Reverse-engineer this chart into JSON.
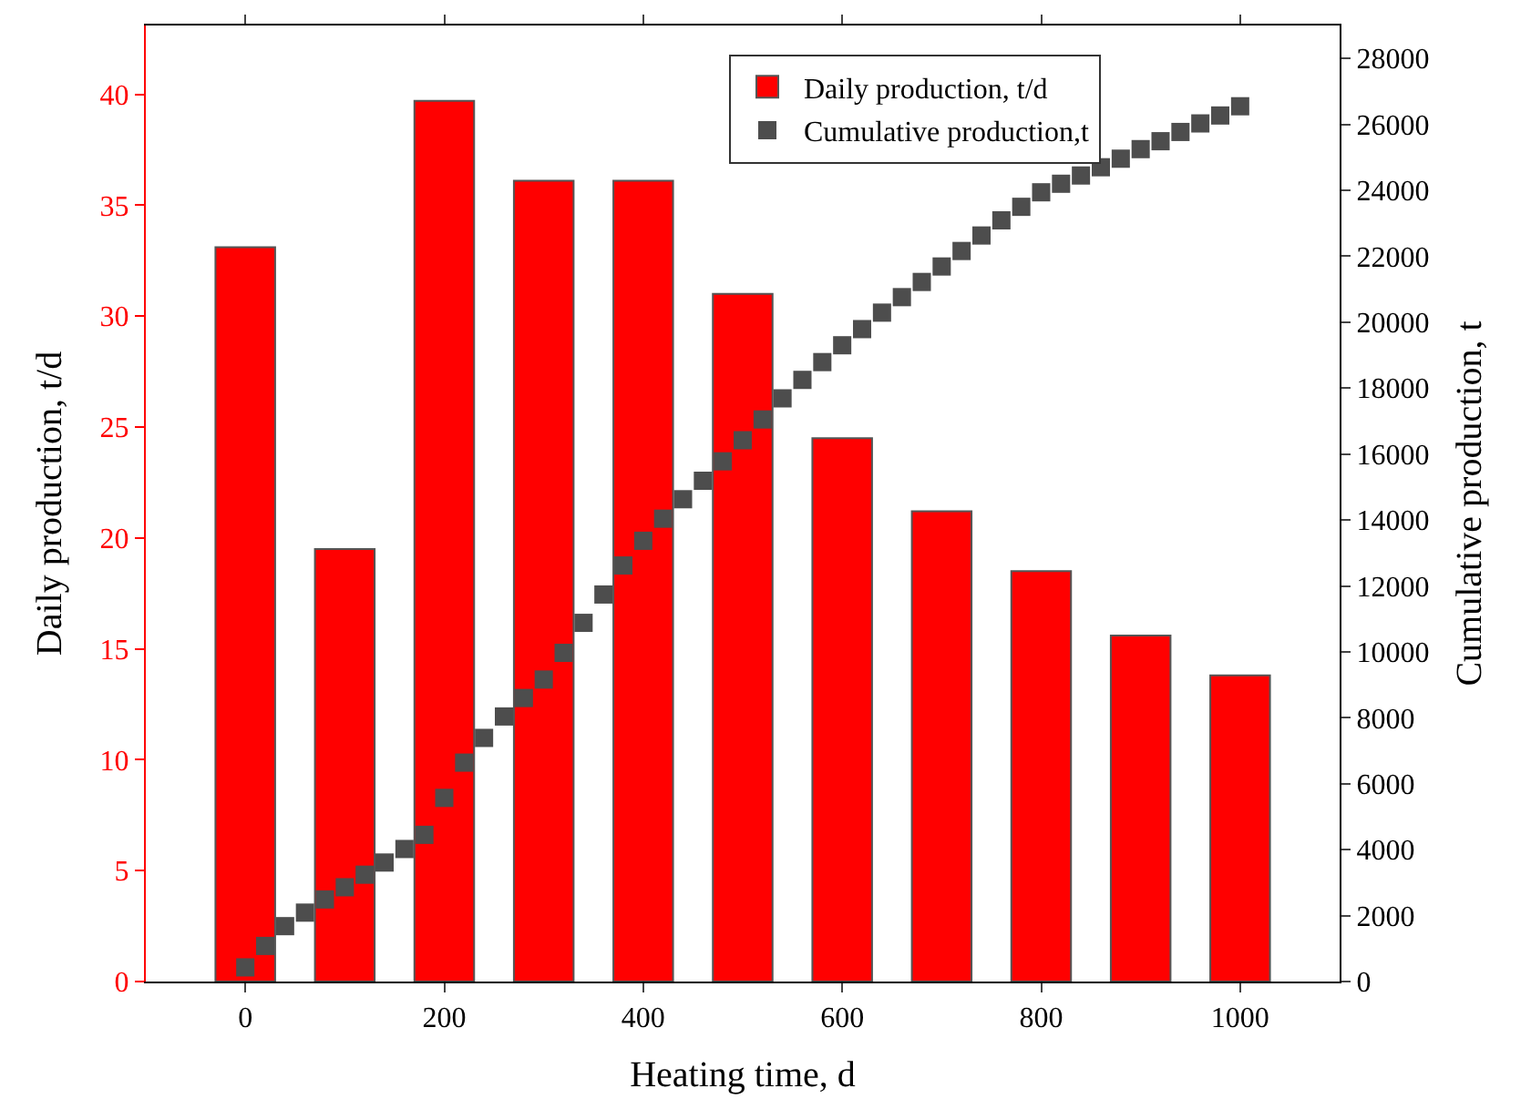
{
  "chart_data": {
    "type": "bar",
    "xlabel": "Heating time, d",
    "ylabel": "Daily production, t/d",
    "y2label": "Cumulative production, t",
    "xlim": [
      -100,
      1100
    ],
    "xticks": [
      0,
      200,
      400,
      600,
      800,
      1000
    ],
    "ylim": [
      0,
      43.1
    ],
    "yticks": [
      0,
      5,
      10,
      15,
      20,
      25,
      30,
      35,
      40
    ],
    "y2lim": [
      0,
      29000
    ],
    "y2ticks": [
      0,
      2000,
      4000,
      6000,
      8000,
      10000,
      12000,
      14000,
      16000,
      18000,
      20000,
      22000,
      24000,
      26000,
      28000
    ],
    "legend": "top right",
    "series": [
      {
        "name": "Daily production, t/d",
        "color": "#ff0000",
        "x": [
          0,
          100,
          200,
          300,
          400,
          500,
          600,
          700,
          800,
          900,
          1000
        ],
        "values": [
          33.1,
          19.5,
          39.7,
          36.1,
          36.1,
          31.0,
          24.5,
          21.2,
          18.5,
          15.6,
          13.8
        ]
      },
      {
        "name": "Cumulative production,t",
        "type": "scatter",
        "axis": "y2",
        "marker": "square",
        "color": "#4d4d4d",
        "x": [
          0,
          20,
          40,
          60,
          80,
          100,
          120,
          140,
          160,
          180,
          200,
          220,
          240,
          260,
          280,
          300,
          320,
          340,
          360,
          380,
          400,
          420,
          440,
          460,
          480,
          500,
          520,
          540,
          560,
          580,
          600,
          620,
          640,
          660,
          680,
          700,
          720,
          740,
          760,
          780,
          800,
          820,
          840,
          860,
          880,
          900,
          920,
          940,
          960,
          980,
          1000
        ],
        "values": [
          430,
          1080,
          1680,
          2090,
          2490,
          2860,
          3240,
          3610,
          4020,
          4450,
          5570,
          6640,
          7390,
          8040,
          8600,
          9160,
          9970,
          10880,
          11740,
          12620,
          13370,
          14040,
          14630,
          15190,
          15780,
          16420,
          17050,
          17690,
          18250,
          18790,
          19300,
          19790,
          20290,
          20760,
          21220,
          21690,
          22160,
          22630,
          23090,
          23500,
          23940,
          24200,
          24450,
          24700,
          24960,
          25250,
          25490,
          25770,
          26030,
          26270,
          26550
        ]
      }
    ]
  }
}
